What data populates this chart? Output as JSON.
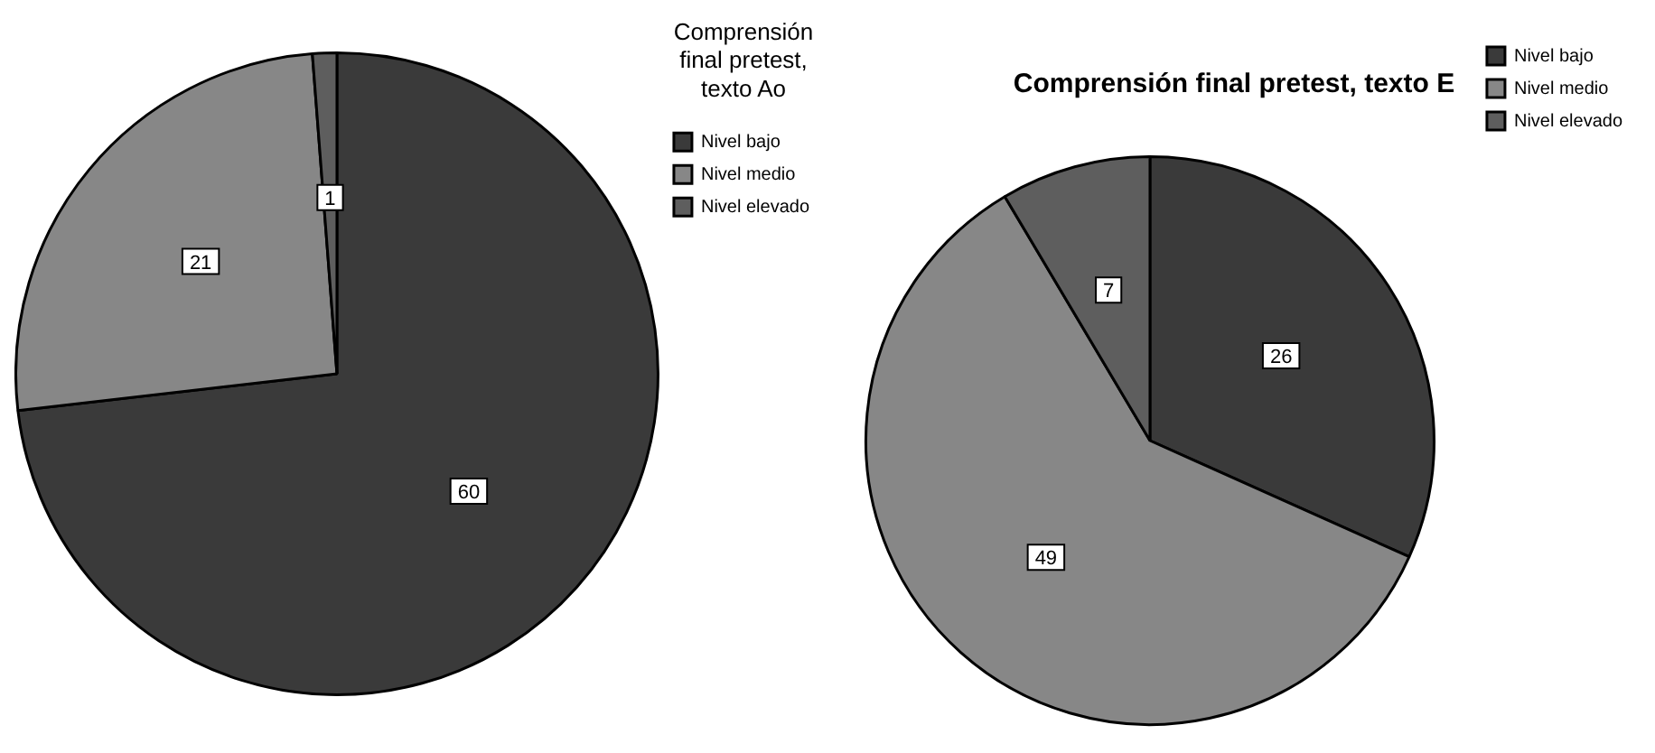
{
  "chart_data": [
    {
      "type": "pie",
      "legend_title": "Comprensión final pretest, texto Ao",
      "categories": [
        "Nivel bajo",
        "Nivel medio",
        "Nivel elevado"
      ],
      "values": [
        60,
        21,
        1
      ],
      "colors": [
        "#3a3a3a",
        "#878787",
        "#5e5e5e"
      ],
      "data_labels": true,
      "legend": "top right"
    },
    {
      "type": "pie",
      "title": "Comprensión final pretest, texto E",
      "categories": [
        "Nivel bajo",
        "Nivel medio",
        "Nivel elevado"
      ],
      "values": [
        26,
        49,
        7
      ],
      "colors": [
        "#3a3a3a",
        "#878787",
        "#5e5e5e"
      ],
      "data_labels": true,
      "legend": "top right"
    }
  ]
}
